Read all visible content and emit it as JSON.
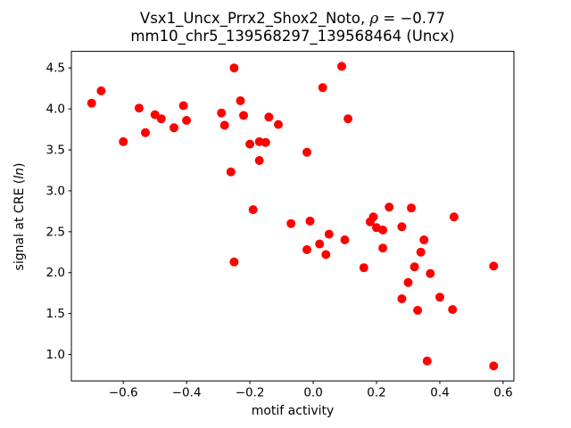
{
  "figure": {
    "title_line1": {
      "pre": "Vsx1_Uncx_Prrx2_Shox2_Noto, ",
      "rho": "ρ",
      "post": " = −0.77"
    },
    "title_line2": "mm10_chr5_139568297_139568464 (Uncx)",
    "xlabel": "motif activity",
    "ylabel": {
      "pre": "signal at CRE (",
      "italic": "ln",
      "post": ")"
    }
  },
  "chart_data": {
    "type": "scatter",
    "title": "Vsx1_Uncx_Prrx2_Shox2_Noto, ρ = −0.77",
    "subtitle": "mm10_chr5_139568297_139568464 (Uncx)",
    "xlabel": "motif activity",
    "ylabel": "signal at CRE (ln)",
    "legend": "none",
    "grid": false,
    "marker_color": "#ff0000",
    "marker_radius_px": 5,
    "xlim": [
      -0.764,
      0.634
    ],
    "ylim": [
      0.677,
      4.703
    ],
    "xticks": {
      "values": [
        -0.6,
        -0.4,
        -0.2,
        0.0,
        0.2,
        0.4,
        0.6
      ],
      "labels": [
        "−0.6",
        "−0.4",
        "−0.2",
        "0.0",
        "0.2",
        "0.4",
        "0.6"
      ]
    },
    "yticks": {
      "values": [
        1.0,
        1.5,
        2.0,
        2.5,
        3.0,
        3.5,
        4.0,
        4.5
      ],
      "labels": [
        "1.0",
        "1.5",
        "2.0",
        "2.5",
        "3.0",
        "3.5",
        "4.0",
        "4.5"
      ]
    },
    "points": [
      [
        -0.7,
        4.07
      ],
      [
        -0.67,
        4.22
      ],
      [
        -0.6,
        3.6
      ],
      [
        -0.55,
        4.01
      ],
      [
        -0.53,
        3.71
      ],
      [
        -0.5,
        3.93
      ],
      [
        -0.48,
        3.88
      ],
      [
        -0.44,
        3.77
      ],
      [
        -0.41,
        4.04
      ],
      [
        -0.4,
        3.86
      ],
      [
        -0.25,
        4.5
      ],
      [
        -0.29,
        3.95
      ],
      [
        -0.28,
        3.8
      ],
      [
        -0.26,
        3.23
      ],
      [
        -0.25,
        2.13
      ],
      [
        -0.23,
        4.1
      ],
      [
        -0.22,
        3.92
      ],
      [
        -0.2,
        3.57
      ],
      [
        -0.19,
        2.77
      ],
      [
        -0.17,
        3.6
      ],
      [
        -0.17,
        3.37
      ],
      [
        -0.15,
        3.59
      ],
      [
        -0.14,
        3.9
      ],
      [
        -0.11,
        3.81
      ],
      [
        -0.07,
        2.6
      ],
      [
        -0.02,
        3.47
      ],
      [
        -0.02,
        2.28
      ],
      [
        -0.01,
        2.63
      ],
      [
        0.02,
        2.35
      ],
      [
        0.03,
        4.26
      ],
      [
        0.04,
        2.22
      ],
      [
        0.05,
        2.47
      ],
      [
        0.09,
        4.52
      ],
      [
        0.1,
        2.4
      ],
      [
        0.11,
        3.88
      ],
      [
        0.16,
        2.06
      ],
      [
        0.18,
        2.62
      ],
      [
        0.19,
        2.68
      ],
      [
        0.2,
        2.55
      ],
      [
        0.22,
        2.52
      ],
      [
        0.22,
        2.3
      ],
      [
        0.24,
        2.8
      ],
      [
        0.28,
        2.56
      ],
      [
        0.28,
        1.68
      ],
      [
        0.3,
        1.88
      ],
      [
        0.31,
        2.79
      ],
      [
        0.32,
        2.07
      ],
      [
        0.33,
        1.54
      ],
      [
        0.34,
        2.25
      ],
      [
        0.35,
        2.4
      ],
      [
        0.36,
        0.92
      ],
      [
        0.37,
        1.99
      ],
      [
        0.4,
        1.7
      ],
      [
        0.44,
        1.55
      ],
      [
        0.445,
        2.68
      ],
      [
        0.57,
        2.08
      ],
      [
        0.57,
        0.86
      ]
    ]
  }
}
